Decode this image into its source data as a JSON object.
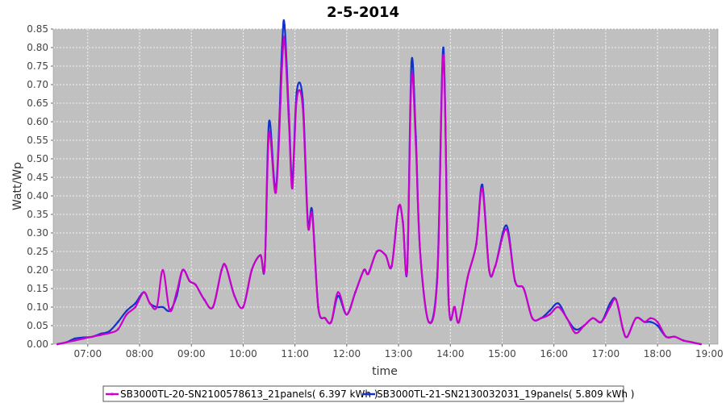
{
  "chart_data": {
    "type": "line",
    "title": "2-5-2014",
    "xlabel": "time",
    "ylabel": "Watt/Wp",
    "xlim": [
      "06:20",
      "19:10"
    ],
    "ylim": [
      0,
      0.85
    ],
    "x_ticks": [
      "07:00",
      "08:00",
      "09:00",
      "10:00",
      "11:00",
      "12:00",
      "13:00",
      "14:00",
      "15:00",
      "16:00",
      "17:00",
      "18:00",
      "19:00"
    ],
    "y_ticks": [
      "0.00",
      "0.05",
      "0.10",
      "0.15",
      "0.20",
      "0.25",
      "0.30",
      "0.35",
      "0.40",
      "0.45",
      "0.50",
      "0.55",
      "0.60",
      "0.65",
      "0.70",
      "0.75",
      "0.80",
      "0.85"
    ],
    "grid": true,
    "legend_position": "bottom",
    "colors": {
      "plot_bg": "#c0c0c0",
      "grid": "#ffffff"
    },
    "series": [
      {
        "name": "SB3000TL-20-SN2100578613_21panels( 6.397 kWh )",
        "color": "#cc00cc",
        "points": [
          [
            "06:25",
            0.0
          ],
          [
            "06:35",
            0.005
          ],
          [
            "06:45",
            0.01
          ],
          [
            "06:55",
            0.015
          ],
          [
            "07:05",
            0.02
          ],
          [
            "07:15",
            0.025
          ],
          [
            "07:25",
            0.03
          ],
          [
            "07:35",
            0.04
          ],
          [
            "07:45",
            0.08
          ],
          [
            "07:55",
            0.1
          ],
          [
            "08:05",
            0.14
          ],
          [
            "08:12",
            0.11
          ],
          [
            "08:20",
            0.1
          ],
          [
            "08:27",
            0.2
          ],
          [
            "08:35",
            0.09
          ],
          [
            "08:43",
            0.14
          ],
          [
            "08:50",
            0.2
          ],
          [
            "08:58",
            0.17
          ],
          [
            "09:05",
            0.16
          ],
          [
            "09:15",
            0.12
          ],
          [
            "09:25",
            0.1
          ],
          [
            "09:35",
            0.2
          ],
          [
            "09:40",
            0.21
          ],
          [
            "09:50",
            0.13
          ],
          [
            "10:00",
            0.1
          ],
          [
            "10:10",
            0.2
          ],
          [
            "10:20",
            0.24
          ],
          [
            "10:25",
            0.21
          ],
          [
            "10:30",
            0.57
          ],
          [
            "10:38",
            0.41
          ],
          [
            "10:45",
            0.75
          ],
          [
            "10:48",
            0.82
          ],
          [
            "10:53",
            0.6
          ],
          [
            "10:57",
            0.42
          ],
          [
            "11:02",
            0.66
          ],
          [
            "11:09",
            0.64
          ],
          [
            "11:15",
            0.32
          ],
          [
            "11:20",
            0.35
          ],
          [
            "11:27",
            0.1
          ],
          [
            "11:35",
            0.07
          ],
          [
            "11:42",
            0.06
          ],
          [
            "11:50",
            0.14
          ],
          [
            "12:00",
            0.08
          ],
          [
            "12:10",
            0.14
          ],
          [
            "12:20",
            0.2
          ],
          [
            "12:25",
            0.19
          ],
          [
            "12:35",
            0.25
          ],
          [
            "12:45",
            0.24
          ],
          [
            "12:52",
            0.21
          ],
          [
            "13:00",
            0.37
          ],
          [
            "13:05",
            0.33
          ],
          [
            "13:10",
            0.2
          ],
          [
            "13:15",
            0.72
          ],
          [
            "13:20",
            0.54
          ],
          [
            "13:25",
            0.25
          ],
          [
            "13:35",
            0.06
          ],
          [
            "13:45",
            0.18
          ],
          [
            "13:52",
            0.78
          ],
          [
            "13:58",
            0.12
          ],
          [
            "14:05",
            0.1
          ],
          [
            "14:10",
            0.06
          ],
          [
            "14:20",
            0.18
          ],
          [
            "14:30",
            0.27
          ],
          [
            "14:37",
            0.42
          ],
          [
            "14:45",
            0.2
          ],
          [
            "14:52",
            0.21
          ],
          [
            "15:05",
            0.31
          ],
          [
            "15:15",
            0.17
          ],
          [
            "15:25",
            0.15
          ],
          [
            "15:35",
            0.07
          ],
          [
            "15:45",
            0.07
          ],
          [
            "15:55",
            0.08
          ],
          [
            "16:05",
            0.1
          ],
          [
            "16:15",
            0.07
          ],
          [
            "16:25",
            0.03
          ],
          [
            "16:35",
            0.05
          ],
          [
            "16:45",
            0.07
          ],
          [
            "16:55",
            0.06
          ],
          [
            "17:05",
            0.1
          ],
          [
            "17:12",
            0.12
          ],
          [
            "17:20",
            0.04
          ],
          [
            "17:25",
            0.02
          ],
          [
            "17:35",
            0.07
          ],
          [
            "17:45",
            0.06
          ],
          [
            "17:52",
            0.07
          ],
          [
            "18:00",
            0.06
          ],
          [
            "18:10",
            0.02
          ],
          [
            "18:20",
            0.02
          ],
          [
            "18:30",
            0.01
          ],
          [
            "18:40",
            0.005
          ],
          [
            "18:50",
            0.0
          ]
        ]
      },
      {
        "name": "SB3000TL-21-SN2130032031_19panels( 5.809 kWh )",
        "color": "#1133cc",
        "points": [
          [
            "06:25",
            0.0
          ],
          [
            "06:35",
            0.005
          ],
          [
            "06:45",
            0.015
          ],
          [
            "06:55",
            0.018
          ],
          [
            "07:05",
            0.02
          ],
          [
            "07:15",
            0.028
          ],
          [
            "07:25",
            0.035
          ],
          [
            "07:35",
            0.06
          ],
          [
            "07:45",
            0.09
          ],
          [
            "07:55",
            0.11
          ],
          [
            "08:05",
            0.14
          ],
          [
            "08:12",
            0.11
          ],
          [
            "08:20",
            0.1
          ],
          [
            "08:27",
            0.1
          ],
          [
            "08:35",
            0.09
          ],
          [
            "08:43",
            0.13
          ],
          [
            "08:50",
            0.2
          ],
          [
            "08:58",
            0.17
          ],
          [
            "09:05",
            0.16
          ],
          [
            "09:15",
            0.12
          ],
          [
            "09:25",
            0.1
          ],
          [
            "09:35",
            0.2
          ],
          [
            "09:40",
            0.21
          ],
          [
            "09:50",
            0.13
          ],
          [
            "10:00",
            0.1
          ],
          [
            "10:10",
            0.2
          ],
          [
            "10:20",
            0.24
          ],
          [
            "10:25",
            0.21
          ],
          [
            "10:30",
            0.6
          ],
          [
            "10:38",
            0.42
          ],
          [
            "10:45",
            0.8
          ],
          [
            "10:48",
            0.86
          ],
          [
            "10:53",
            0.62
          ],
          [
            "10:57",
            0.44
          ],
          [
            "11:02",
            0.68
          ],
          [
            "11:09",
            0.66
          ],
          [
            "11:15",
            0.33
          ],
          [
            "11:20",
            0.36
          ],
          [
            "11:27",
            0.1
          ],
          [
            "11:35",
            0.07
          ],
          [
            "11:42",
            0.06
          ],
          [
            "11:50",
            0.13
          ],
          [
            "12:00",
            0.08
          ],
          [
            "12:10",
            0.14
          ],
          [
            "12:20",
            0.2
          ],
          [
            "12:25",
            0.19
          ],
          [
            "12:35",
            0.25
          ],
          [
            "12:45",
            0.24
          ],
          [
            "12:52",
            0.21
          ],
          [
            "13:00",
            0.37
          ],
          [
            "13:05",
            0.33
          ],
          [
            "13:10",
            0.2
          ],
          [
            "13:15",
            0.76
          ],
          [
            "13:20",
            0.56
          ],
          [
            "13:25",
            0.25
          ],
          [
            "13:35",
            0.06
          ],
          [
            "13:45",
            0.19
          ],
          [
            "13:52",
            0.8
          ],
          [
            "13:58",
            0.12
          ],
          [
            "14:05",
            0.1
          ],
          [
            "14:10",
            0.06
          ],
          [
            "14:20",
            0.18
          ],
          [
            "14:30",
            0.27
          ],
          [
            "14:37",
            0.43
          ],
          [
            "14:45",
            0.2
          ],
          [
            "14:52",
            0.21
          ],
          [
            "15:05",
            0.32
          ],
          [
            "15:15",
            0.17
          ],
          [
            "15:25",
            0.15
          ],
          [
            "15:35",
            0.07
          ],
          [
            "15:45",
            0.07
          ],
          [
            "15:55",
            0.09
          ],
          [
            "16:05",
            0.11
          ],
          [
            "16:15",
            0.07
          ],
          [
            "16:25",
            0.04
          ],
          [
            "16:35",
            0.05
          ],
          [
            "16:45",
            0.07
          ],
          [
            "16:55",
            0.06
          ],
          [
            "17:05",
            0.11
          ],
          [
            "17:12",
            0.12
          ],
          [
            "17:20",
            0.04
          ],
          [
            "17:25",
            0.02
          ],
          [
            "17:35",
            0.07
          ],
          [
            "17:45",
            0.06
          ],
          [
            "17:52",
            0.06
          ],
          [
            "18:00",
            0.05
          ],
          [
            "18:10",
            0.02
          ],
          [
            "18:20",
            0.02
          ],
          [
            "18:30",
            0.01
          ],
          [
            "18:40",
            0.005
          ],
          [
            "18:50",
            0.0
          ]
        ]
      }
    ]
  }
}
